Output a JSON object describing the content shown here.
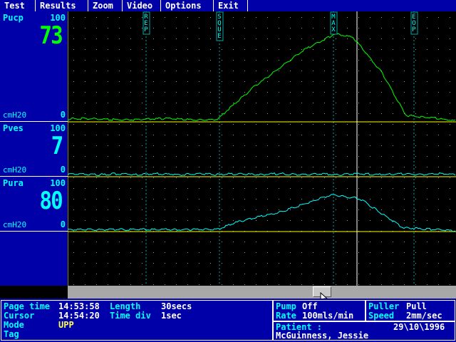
{
  "menu": [
    "Test",
    "Results",
    "Zoom",
    "Video",
    "Options",
    "Exit"
  ],
  "channels": [
    {
      "name": "Pucp",
      "max": "100",
      "value": "73",
      "unit": "cmH20",
      "min": "0",
      "color": "#00ff00"
    },
    {
      "name": "Pves",
      "max": "100",
      "value": "7",
      "unit": "cmH20",
      "min": "0",
      "color": "#00ffff"
    },
    {
      "name": "Pura",
      "max": "100",
      "value": "80",
      "unit": "cmH20",
      "min": "0",
      "color": "#00ffff"
    }
  ],
  "event_markers": [
    "REP",
    "SQUE",
    "MAX",
    "EOP"
  ],
  "status": {
    "page_time_label": "Page time",
    "page_time": "14:53:58",
    "length_label": "Length",
    "length": "30secs",
    "cursor_label": "Cursor",
    "cursor_time": "14:54:20",
    "time_div_label": "Time div",
    "time_div": "1sec",
    "mode_label": "Mode",
    "mode": "UPP",
    "tag_label": "Tag",
    "pump_label": "Pump",
    "pump": "Off",
    "rate_label": "Rate",
    "rate": "100mls/min",
    "puller_label": "Puller",
    "puller": "Pull",
    "speed_label": "Speed",
    "speed": "2mm/sec",
    "patient_label": "Patient :",
    "patient_name": "McGuinness, Jessie",
    "date": "29\\10\\1996"
  },
  "icons": {
    "pointer": "mouse-pointer-icon"
  }
}
